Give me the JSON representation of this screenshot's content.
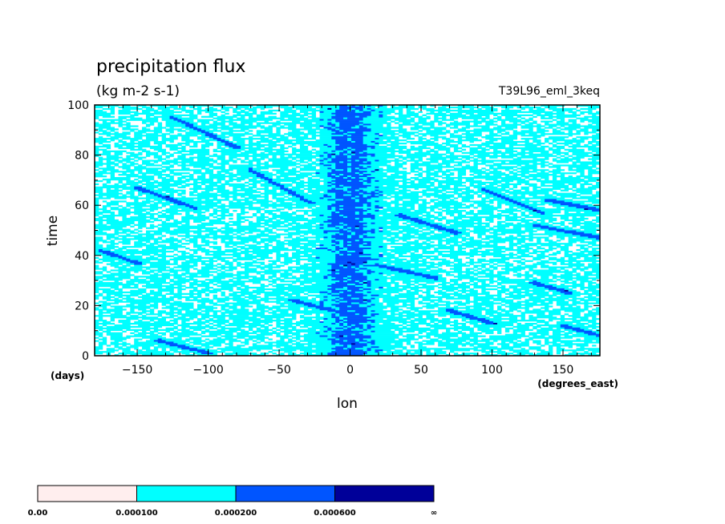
{
  "chart_data": {
    "type": "heatmap",
    "title": "precipitation flux",
    "units": "(kg m-2 s-1)",
    "experiment": "T39L96_eml_3keq",
    "xlabel": "lon",
    "xunits": "(degrees_east)",
    "ylabel": "time",
    "yunits": "(days)",
    "xlim": [
      -180,
      176
    ],
    "ylim": [
      0,
      100
    ],
    "xticks": [
      {
        "value": -150,
        "label": "−150"
      },
      {
        "value": -100,
        "label": "−100"
      },
      {
        "value": -50,
        "label": "−50"
      },
      {
        "value": 0,
        "label": "0"
      },
      {
        "value": 50,
        "label": "50"
      },
      {
        "value": 100,
        "label": "100"
      },
      {
        "value": 150,
        "label": "150"
      }
    ],
    "yticks": [
      {
        "value": 0,
        "label": "0"
      },
      {
        "value": 20,
        "label": "20"
      },
      {
        "value": 40,
        "label": "40"
      },
      {
        "value": 60,
        "label": "60"
      },
      {
        "value": 80,
        "label": "80"
      },
      {
        "value": 100,
        "label": "100"
      }
    ],
    "levels": [
      {
        "label": "0.00",
        "color": "#ffeeee"
      },
      {
        "label": "0.000100",
        "color": "#00ffff"
      },
      {
        "label": "0.000200",
        "color": "#0055ff"
      },
      {
        "label": "0.000600",
        "color": "#000099"
      }
    ],
    "levels_end_label": "∞",
    "background_color": "#ffffff",
    "equatorial_band": {
      "center_lon": 0,
      "half_width_deg": 18
    },
    "propagating_streaks": [
      {
        "lon": [
          -125,
          -80
        ],
        "time": [
          95,
          83
        ]
      },
      {
        "lon": [
          -70,
          -28
        ],
        "time": [
          74,
          61
        ]
      },
      {
        "lon": [
          -150,
          -110
        ],
        "time": [
          67,
          59
        ]
      },
      {
        "lon": [
          95,
          135
        ],
        "time": [
          66,
          57
        ]
      },
      {
        "lon": [
          140,
          176
        ],
        "time": [
          62,
          58
        ]
      },
      {
        "lon": [
          35,
          75
        ],
        "time": [
          56,
          49
        ]
      },
      {
        "lon": [
          130,
          176
        ],
        "time": [
          52,
          47
        ]
      },
      {
        "lon": [
          -135,
          -100
        ],
        "time": [
          6,
          1
        ]
      },
      {
        "lon": [
          70,
          100
        ],
        "time": [
          18,
          13
        ]
      },
      {
        "lon": [
          130,
          155
        ],
        "time": [
          29,
          25
        ]
      },
      {
        "lon": [
          -176,
          -150
        ],
        "time": [
          42,
          37
        ]
      },
      {
        "lon": [
          20,
          60
        ],
        "time": [
          36,
          31
        ]
      },
      {
        "lon": [
          150,
          176
        ],
        "time": [
          12,
          8
        ]
      },
      {
        "lon": [
          -40,
          -5
        ],
        "time": [
          22,
          17
        ]
      }
    ]
  }
}
